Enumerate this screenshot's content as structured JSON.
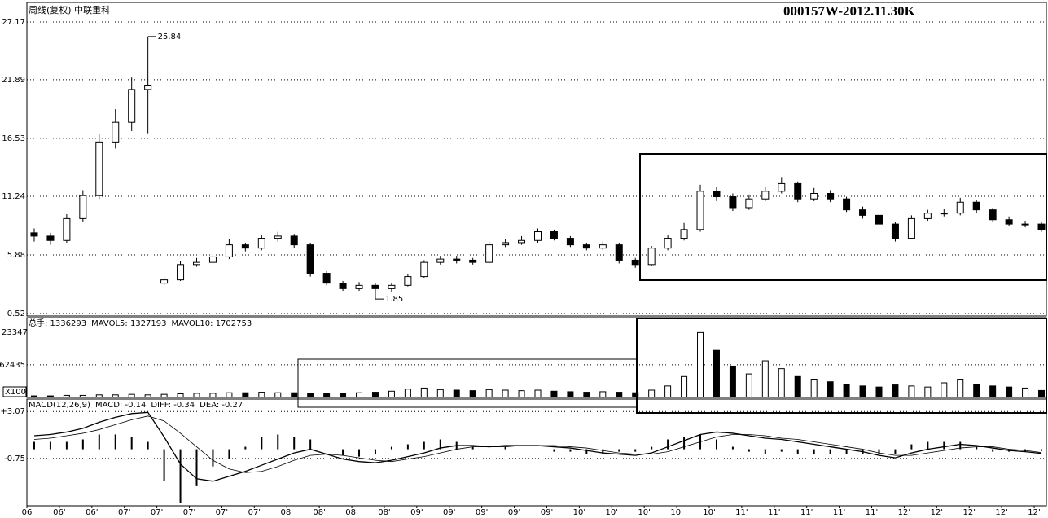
{
  "header": {
    "title": "周线(复权)  中联重科",
    "code": "000157W-2012.11.30K"
  },
  "chart_data": [
    {
      "type": "candlestick",
      "open": [
        7.9,
        7.6,
        7.2,
        9.2,
        11.3,
        16.2,
        18.0,
        21.0,
        3.3,
        3.6,
        5.0,
        5.2,
        5.7,
        6.8,
        6.5,
        7.4,
        7.6,
        6.8,
        4.2,
        3.3,
        2.8,
        3.1,
        2.8,
        3.1,
        3.9,
        5.2,
        5.5,
        5.4,
        5.2,
        6.8,
        7.0,
        7.2,
        8.0,
        7.4,
        6.8,
        6.5,
        6.8,
        5.4,
        5.0,
        6.5,
        7.4,
        8.2,
        11.7,
        11.2,
        10.2,
        11.0,
        11.7,
        12.4,
        11.0,
        11.5,
        11.0,
        10.0,
        9.5,
        8.7,
        7.4,
        9.2,
        9.7,
        9.7,
        10.7,
        10.0,
        9.1,
        8.7,
        8.7
      ],
      "high": [
        8.3,
        7.9,
        9.6,
        11.8,
        16.9,
        19.2,
        22.1,
        25.84,
        3.9,
        5.3,
        5.6,
        6.0,
        7.3,
        7.0,
        7.7,
        8.0,
        7.8,
        7.0,
        4.4,
        3.5,
        3.4,
        3.3,
        3.3,
        4.1,
        5.4,
        5.8,
        5.8,
        5.6,
        7.1,
        7.3,
        7.6,
        8.3,
        8.2,
        7.6,
        7.0,
        7.1,
        7.0,
        5.6,
        6.7,
        7.7,
        8.8,
        12.3,
        12.1,
        11.5,
        11.4,
        12.1,
        13.0,
        12.6,
        12.0,
        11.8,
        11.2,
        10.3,
        9.7,
        8.9,
        9.5,
        10.0,
        10.1,
        11.1,
        10.9,
        10.2,
        9.4,
        9.0,
        8.9
      ],
      "low": [
        7.1,
        6.8,
        7.0,
        8.9,
        11.0,
        15.6,
        17.2,
        17.0,
        3.1,
        3.5,
        4.8,
        5.0,
        5.5,
        6.2,
        6.3,
        7.1,
        6.5,
        3.9,
        3.1,
        2.6,
        2.6,
        1.85,
        2.5,
        3.0,
        3.8,
        5.0,
        5.1,
        5.0,
        5.1,
        6.6,
        6.8,
        7.0,
        7.2,
        6.6,
        6.3,
        6.3,
        5.1,
        4.7,
        4.9,
        6.3,
        7.2,
        8.0,
        10.8,
        9.9,
        10.0,
        10.8,
        11.5,
        10.7,
        10.8,
        10.7,
        9.8,
        9.2,
        8.4,
        7.1,
        7.3,
        9.0,
        9.4,
        9.5,
        9.7,
        8.9,
        8.5,
        8.4,
        8.0
      ],
      "close": [
        7.6,
        7.2,
        9.2,
        11.3,
        16.2,
        18.0,
        21.0,
        21.4,
        3.6,
        5.0,
        5.2,
        5.7,
        6.8,
        6.5,
        7.4,
        7.6,
        6.8,
        4.2,
        3.3,
        2.8,
        3.1,
        2.8,
        3.1,
        3.9,
        5.2,
        5.5,
        5.4,
        5.2,
        6.8,
        7.0,
        7.2,
        8.0,
        7.4,
        6.8,
        6.5,
        6.8,
        5.4,
        5.0,
        6.5,
        7.4,
        8.2,
        11.7,
        11.2,
        10.2,
        11.0,
        11.7,
        12.4,
        11.0,
        11.5,
        11.0,
        10.0,
        9.5,
        8.7,
        7.4,
        9.2,
        9.7,
        9.7,
        10.7,
        10.0,
        9.1,
        8.7,
        8.7,
        8.2
      ],
      "up_color": "#ffffff",
      "down_color": "#000000",
      "ylim": [
        0.52,
        27.17
      ],
      "yticks": [
        27.17,
        21.89,
        16.53,
        11.24,
        5.88,
        0.52
      ],
      "grid": true,
      "xlim": [
        -0.45,
        62.3
      ],
      "xticks": [
        {
          "value": -0.45,
          "label": "06"
        },
        {
          "value": 1.55,
          "label": "06'"
        },
        {
          "value": 3.55,
          "label": "06'"
        },
        {
          "value": 5.55,
          "label": "07'"
        },
        {
          "value": 7.55,
          "label": "07'"
        },
        {
          "value": 9.55,
          "label": "07'"
        },
        {
          "value": 11.55,
          "label": "07'"
        },
        {
          "value": 13.55,
          "label": "07'"
        },
        {
          "value": 15.55,
          "label": "08'"
        },
        {
          "value": 17.55,
          "label": "08'"
        },
        {
          "value": 19.55,
          "label": "08'"
        },
        {
          "value": 21.55,
          "label": "08'"
        },
        {
          "value": 23.55,
          "label": "09'"
        },
        {
          "value": 25.55,
          "label": "09'"
        },
        {
          "value": 27.55,
          "label": "09'"
        },
        {
          "value": 29.55,
          "label": "09'"
        },
        {
          "value": 31.55,
          "label": "09'"
        },
        {
          "value": 33.55,
          "label": "10'"
        },
        {
          "value": 35.55,
          "label": "10'"
        },
        {
          "value": 37.55,
          "label": "10'"
        },
        {
          "value": 39.55,
          "label": "10'"
        },
        {
          "value": 41.55,
          "label": "10'"
        },
        {
          "value": 43.55,
          "label": "11'"
        },
        {
          "value": 45.55,
          "label": "11'"
        },
        {
          "value": 47.55,
          "label": "11'"
        },
        {
          "value": 49.55,
          "label": "11'"
        },
        {
          "value": 51.55,
          "label": "11'"
        },
        {
          "value": 53.55,
          "label": "12'"
        },
        {
          "value": 55.55,
          "label": "12'"
        },
        {
          "value": 57.55,
          "label": "12'"
        },
        {
          "value": 59.55,
          "label": "12'"
        },
        {
          "value": 61.55,
          "label": "12'"
        }
      ]
    },
    {
      "type": "bar",
      "series": [
        {
          "name": "总手: 1336293",
          "color": "#000000",
          "values": [
            3000,
            3000,
            4000,
            4000,
            5000,
            5000,
            6000,
            5000,
            6000,
            7000,
            8000,
            8000,
            9000,
            9000,
            10000,
            9000,
            9000,
            8000,
            8000,
            8000,
            9000,
            10000,
            12000,
            16000,
            18000,
            15000,
            14000,
            13000,
            15000,
            14000,
            13000,
            14000,
            12000,
            11000,
            10000,
            11000,
            10000,
            9000,
            14000,
            22000,
            40000,
            124000,
            90000,
            60000,
            45000,
            70000,
            55000,
            40000,
            35000,
            30000,
            25000,
            22000,
            20000,
            24000,
            22000,
            20000,
            28000,
            35000,
            25000,
            22000,
            20000,
            18000,
            13363
          ]
        }
      ],
      "indicators": [
        {
          "label": "MAVOL5: 1327193",
          "color": "#8b1a1a"
        },
        {
          "label": "MAVOL10: 1702753",
          "color": "#000000"
        }
      ],
      "ylim": [
        0,
        137000
      ],
      "yticks": [
        62435
      ],
      "cut_label": "23347",
      "unit": "X100",
      "grid": true
    },
    {
      "type": "macd",
      "title": "MACD(12,26,9)",
      "series": [
        {
          "name": "MACD: -0.14",
          "color": "#000000",
          "values": [
            0.6,
            0.6,
            0.6,
            0.8,
            1.2,
            1.2,
            1.0,
            0.6,
            -2.6,
            -4.4,
            -3.0,
            -1.4,
            -0.8,
            0.2,
            1.0,
            1.2,
            1.0,
            0.8,
            0.0,
            -0.5,
            -0.6,
            -0.4,
            0.2,
            0.4,
            0.6,
            0.8,
            0.6,
            0.2,
            0.0,
            0.2,
            0.0,
            0.0,
            -0.2,
            -0.2,
            -0.4,
            -0.4,
            -0.2,
            -0.2,
            0.2,
            0.8,
            1.0,
            1.2,
            0.8,
            0.2,
            -0.2,
            -0.4,
            -0.2,
            -0.4,
            -0.4,
            -0.4,
            -0.4,
            -0.4,
            -0.4,
            -0.4,
            0.4,
            0.6,
            0.6,
            0.6,
            0.2,
            -0.2,
            -0.2,
            -0.2,
            -0.14
          ]
        },
        {
          "name": "DIFF: -0.34",
          "color": "#000000",
          "values": [
            1.1,
            1.2,
            1.4,
            1.7,
            2.2,
            2.6,
            2.9,
            3.0,
            1.0,
            -1.2,
            -2.4,
            -2.6,
            -2.2,
            -1.8,
            -1.3,
            -0.8,
            -0.3,
            0.0,
            -0.4,
            -0.8,
            -1.0,
            -1.1,
            -0.9,
            -0.6,
            -0.3,
            0.1,
            0.3,
            0.3,
            0.2,
            0.3,
            0.3,
            0.3,
            0.2,
            0.1,
            -0.1,
            -0.3,
            -0.4,
            -0.5,
            -0.3,
            0.2,
            0.7,
            1.2,
            1.4,
            1.3,
            1.1,
            0.9,
            0.8,
            0.6,
            0.4,
            0.2,
            0.0,
            -0.2,
            -0.5,
            -0.7,
            -0.3,
            0.0,
            0.2,
            0.4,
            0.3,
            0.1,
            -0.1,
            -0.2,
            -0.34
          ]
        },
        {
          "name": "DEA: -0.27",
          "color": "#000000",
          "values": [
            0.8,
            0.9,
            1.1,
            1.3,
            1.6,
            2.0,
            2.4,
            2.7,
            2.3,
            1.3,
            0.2,
            -0.9,
            -1.6,
            -1.9,
            -1.8,
            -1.4,
            -0.9,
            -0.5,
            -0.4,
            -0.5,
            -0.7,
            -0.9,
            -1.0,
            -0.8,
            -0.6,
            -0.3,
            0.0,
            0.2,
            0.2,
            0.2,
            0.3,
            0.3,
            0.3,
            0.2,
            0.1,
            -0.1,
            -0.3,
            -0.4,
            -0.4,
            -0.2,
            0.2,
            0.6,
            1.0,
            1.2,
            1.2,
            1.1,
            0.9,
            0.8,
            0.6,
            0.4,
            0.2,
            0.0,
            -0.3,
            -0.5,
            -0.5,
            -0.3,
            -0.1,
            0.1,
            0.2,
            0.2,
            0.0,
            -0.1,
            -0.27
          ]
        }
      ],
      "ylim": [
        -4.6,
        4.08
      ],
      "yticks": [
        {
          "value": 3.07,
          "label": "+3.07"
        },
        -0.75
      ],
      "grid": true
    }
  ]
}
